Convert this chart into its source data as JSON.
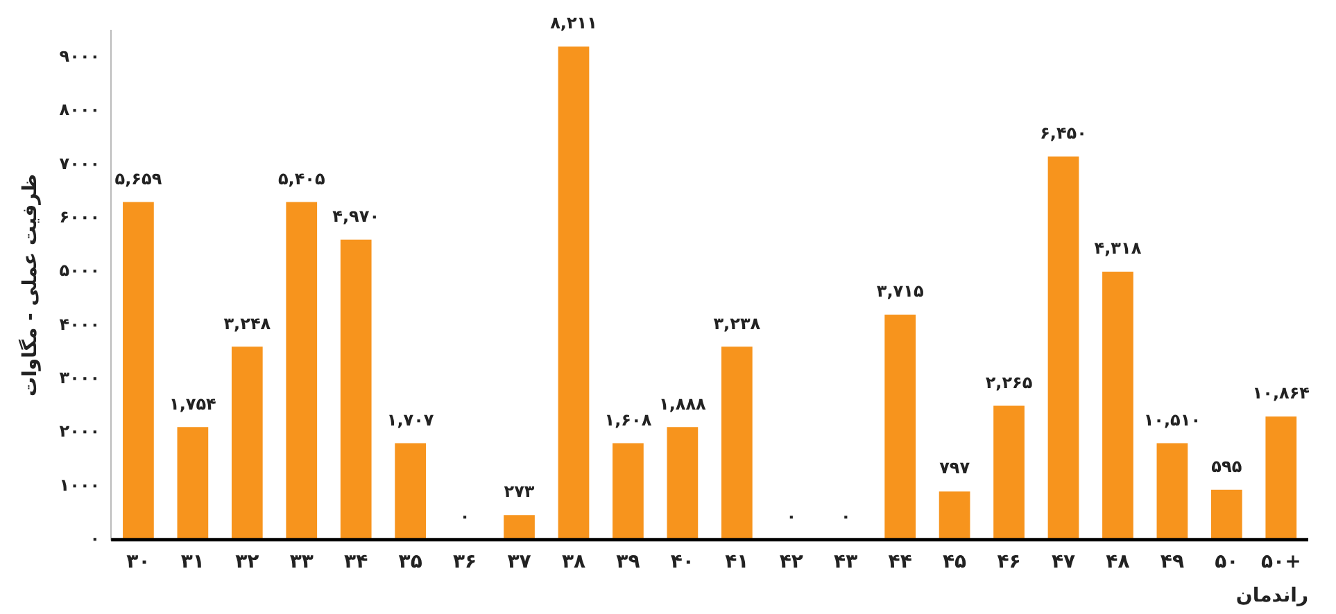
{
  "chart_data": {
    "type": "bar",
    "ylabel": "ظرفیت عملی - مگاوات",
    "xlabel": "راندمان",
    "categories": [
      "۳۰",
      "۳۱",
      "۳۲",
      "۳۳",
      "۳۴",
      "۳۵",
      "۳۶",
      "۳۷",
      "۳۸",
      "۳۹",
      "۴۰",
      "۴۱",
      "۴۲",
      "۴۳",
      "۴۴",
      "۴۵",
      "۴۶",
      "۴۷",
      "۴۸",
      "۴۹",
      "۵۰",
      "۵۰+"
    ],
    "values": [
      6300,
      2100,
      3600,
      6300,
      5600,
      1800,
      0,
      460,
      9200,
      1800,
      2100,
      3600,
      0,
      0,
      4200,
      900,
      2500,
      7150,
      5000,
      1800,
      930,
      2300
    ],
    "annotations": [
      {
        "text": "۵,۶۵۹",
        "x": "۳۰",
        "y": 6300
      },
      {
        "text": "۱,۷۵۴",
        "x": "۳۱",
        "y": 2100
      },
      {
        "text": "۳,۲۴۸",
        "x": "۳۲",
        "y": 3600
      },
      {
        "text": "۵,۴۰۵",
        "x": "۳۳",
        "y": 6300
      },
      {
        "text": "۴,۹۷۰",
        "x": "۳۴",
        "y": 5600
      },
      {
        "text": "۱,۷۰۷",
        "x": "۳۵",
        "y": 1800
      },
      {
        "text": "۰",
        "x": "۳۶",
        "y": 0
      },
      {
        "text": "۲۷۳",
        "x": "۳۷",
        "y": 460
      },
      {
        "text": "۸,۲۱۱",
        "x": "۳۸",
        "y": 9200
      },
      {
        "text": "۱,۶۰۸",
        "x": "۳۹",
        "y": 1800
      },
      {
        "text": "۱,۸۸۸",
        "x": "۴۰",
        "y": 2100
      },
      {
        "text": "۳,۲۳۸",
        "x": "۴۱",
        "y": 3600
      },
      {
        "text": "۰",
        "x": "۴۲",
        "y": 0
      },
      {
        "text": "۰",
        "x": "۴۳",
        "y": 0
      },
      {
        "text": "۳,۷۱۵",
        "x": "۴۴",
        "y": 4200
      },
      {
        "text": "۷۹۷",
        "x": "۴۵",
        "y": 900
      },
      {
        "text": "۲,۲۶۵",
        "x": "۴۶",
        "y": 2500
      },
      {
        "text": "۶,۴۵۰",
        "x": "۴۷",
        "y": 7150
      },
      {
        "text": "۴,۳۱۸",
        "x": "۴۸",
        "y": 5000
      },
      {
        "text": "۱۰,۵۱۰",
        "x": "۴۹",
        "y": 1800
      },
      {
        "text": "۵۹۵",
        "x": "۵۰",
        "y": 930
      },
      {
        "text": "۱۰,۸۶۴",
        "x": "۵۰+",
        "y": 2300
      }
    ],
    "color": "#f7941d",
    "ylim": [
      0,
      9500
    ],
    "yticks": [
      {
        "value": 0,
        "label": "۰"
      },
      {
        "value": 1000,
        "label": "۱۰۰۰"
      },
      {
        "value": 2000,
        "label": "۲۰۰۰"
      },
      {
        "value": 3000,
        "label": "۳۰۰۰"
      },
      {
        "value": 4000,
        "label": "۴۰۰۰"
      },
      {
        "value": 5000,
        "label": "۵۰۰۰"
      },
      {
        "value": 6000,
        "label": "۶۰۰۰"
      },
      {
        "value": 7000,
        "label": "۷۰۰۰"
      },
      {
        "value": 8000,
        "label": "۸۰۰۰"
      },
      {
        "value": 9000,
        "label": "۹۰۰۰"
      }
    ],
    "grid": false,
    "legend": false
  }
}
